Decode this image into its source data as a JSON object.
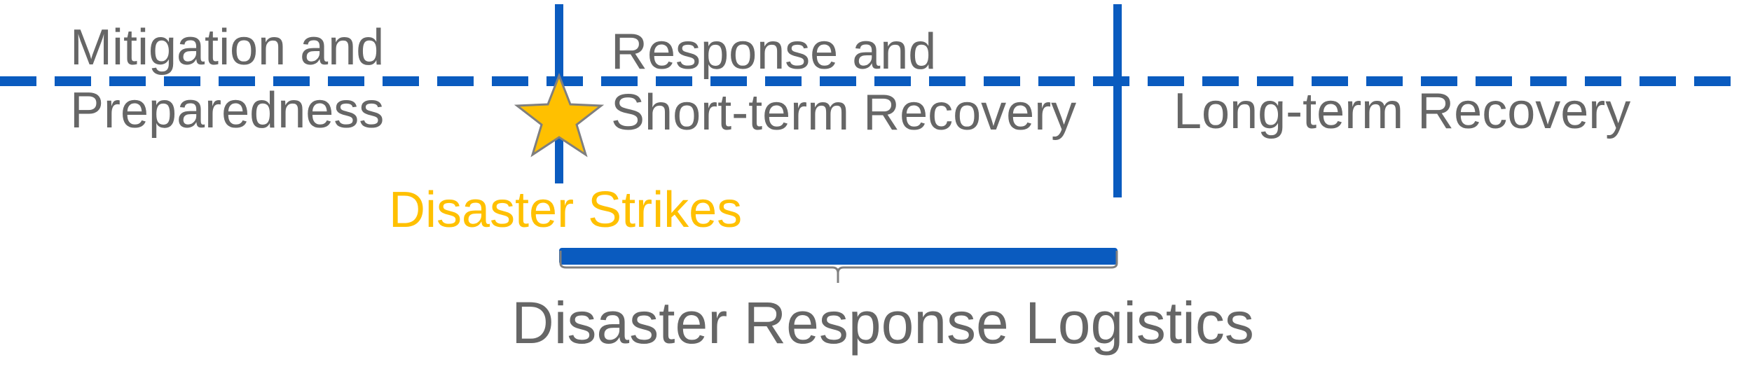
{
  "colors": {
    "line": "#0a5bbf",
    "text": "#666666",
    "accent": "#ffc000",
    "star_stroke": "#7f7f7f"
  },
  "phases": {
    "mitigation": {
      "line1": "Mitigation and",
      "line2": "Preparedness"
    },
    "response": {
      "line1": "Response and",
      "line2": "Short-term Recovery"
    },
    "long_term": {
      "label": "Long-term Recovery"
    }
  },
  "event": {
    "label": "Disaster Strikes",
    "icon": "star-icon"
  },
  "bracket": {
    "label": "Disaster Response Logistics"
  }
}
